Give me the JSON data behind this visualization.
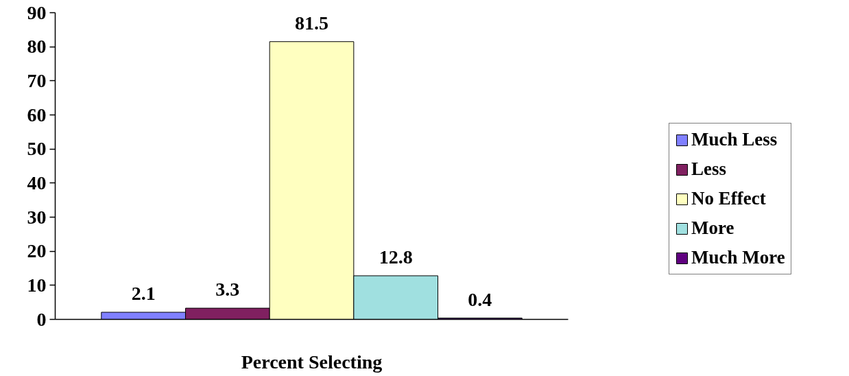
{
  "chart_data": {
    "type": "bar",
    "categories": [
      "Percent Selecting"
    ],
    "series": [
      {
        "name": "Much Less",
        "color": "#8080ff",
        "values": [
          2.1
        ]
      },
      {
        "name": "Less",
        "color": "#802060",
        "values": [
          3.3
        ]
      },
      {
        "name": "No Effect",
        "color": "#ffffc0",
        "values": [
          81.5
        ]
      },
      {
        "name": "More",
        "color": "#a0e0e0",
        "values": [
          12.8
        ]
      },
      {
        "name": "Much More",
        "color": "#600080",
        "values": [
          0.4
        ]
      }
    ],
    "ylim": [
      0,
      90
    ],
    "yticks": [
      0,
      10,
      20,
      30,
      40,
      50,
      60,
      70,
      80,
      90
    ],
    "grid": false,
    "legend": "right",
    "data_labels": true
  }
}
